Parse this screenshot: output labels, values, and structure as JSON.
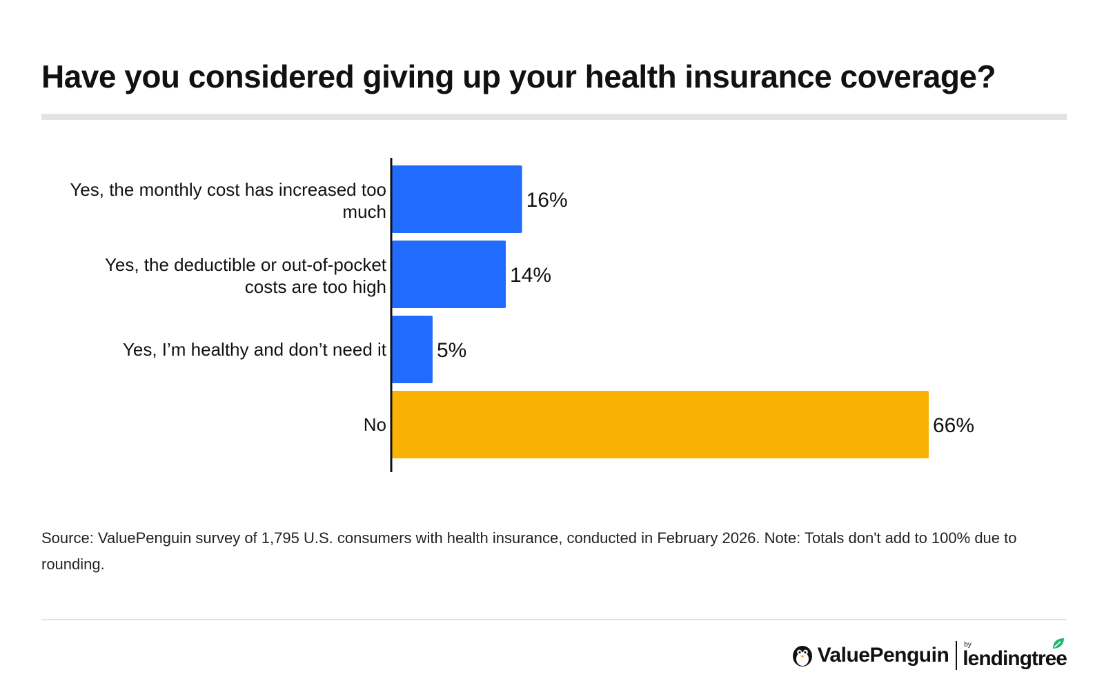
{
  "title": "Have you considered giving up your health insurance coverage?",
  "chart_data": {
    "type": "bar",
    "orientation": "horizontal",
    "categories": [
      "Yes, the monthly cost has increased too much",
      "Yes, the deductible or out-of-pocket costs are too high",
      "Yes, I’m healthy and don’t need it",
      "No"
    ],
    "values": [
      16,
      14,
      5,
      66
    ],
    "data_labels": [
      "16%",
      "14%",
      "5%",
      "66%"
    ],
    "bar_colors": [
      "#216CFF",
      "#216CFF",
      "#216CFF",
      "#F9B203"
    ],
    "title": "Have you considered giving up your health insurance coverage?",
    "xlabel": "",
    "ylabel": "",
    "xlim": [
      0,
      66
    ],
    "grid": false,
    "legend": "none"
  },
  "category_lines": [
    [
      "Yes, the monthly cost has increased too",
      "much"
    ],
    [
      "Yes, the deductible or out-of-pocket",
      "costs are too high"
    ],
    [
      "Yes, I’m healthy and don’t need it"
    ],
    [
      "No"
    ]
  ],
  "source": "Source: ValuePenguin survey of 1,795 U.S. consumers with health insurance, conducted in February 2026. Note: Totals don't add to 100% due to rounding.",
  "footer": {
    "brand": "ValuePenguin",
    "by": "by",
    "partner": "lendingtree",
    "partner_icon": "leaf-icon",
    "brand_icon": "penguin-icon"
  },
  "colors": {
    "primary_bar": "#216CFF",
    "highlight_bar": "#F9B203",
    "leaf": "#22B573"
  }
}
